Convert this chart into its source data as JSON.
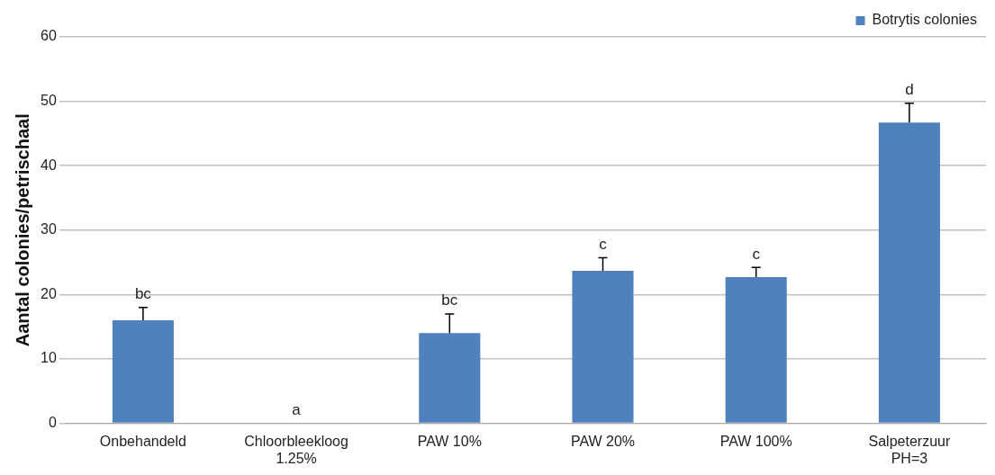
{
  "chart_data": {
    "type": "bar",
    "ylabel": "Aantal colonies/petrischaal",
    "categories": [
      "Onbehandeld",
      "Chloorbleekloog 1.25%",
      "PAW 10%",
      "PAW 20%",
      "PAW 100%",
      "Salpeterzuur PH=3"
    ],
    "series": [
      {
        "name": "Botrytis colonies",
        "color": "#4f81bd",
        "values": [
          16,
          0,
          14,
          23.7,
          22.7,
          46.7
        ],
        "errors": [
          [
            16,
            18
          ],
          null,
          [
            14,
            17
          ],
          [
            23.7,
            25.7
          ],
          [
            22.7,
            24.2
          ],
          [
            46.7,
            49.7
          ]
        ]
      }
    ],
    "annotations": [
      {
        "text": "bc",
        "x": "Onbehandeld",
        "y": 18
      },
      {
        "text": "a",
        "x": "Chloorbleekloog 1.25%",
        "y": 0
      },
      {
        "text": "bc",
        "x": "PAW 10%",
        "y": 17
      },
      {
        "text": "c",
        "x": "PAW 20%",
        "y": 25.7
      },
      {
        "text": "c",
        "x": "PAW 100%",
        "y": 24.2
      },
      {
        "text": "d",
        "x": "Salpeterzuur PH=3",
        "y": 49.7
      }
    ],
    "ylim": [
      0,
      60
    ],
    "yticks": [
      0,
      10,
      20,
      30,
      40,
      50,
      60
    ],
    "grid": "y",
    "legend": "top right"
  }
}
